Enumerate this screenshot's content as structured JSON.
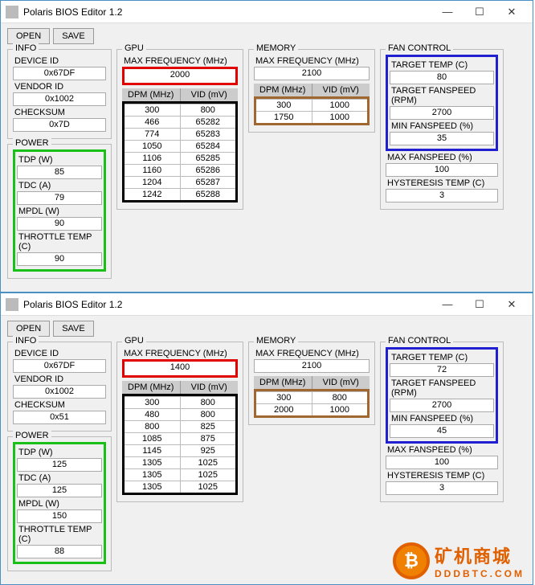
{
  "windows": [
    {
      "title": "Polaris BIOS Editor 1.2",
      "buttons": {
        "open": "OPEN",
        "save": "SAVE"
      },
      "info": {
        "legend": "INFO",
        "device_id_label": "DEVICE ID",
        "device_id": "0x67DF",
        "vendor_id_label": "VENDOR ID",
        "vendor_id": "0x1002",
        "checksum_label": "CHECKSUM",
        "checksum": "0x7D"
      },
      "power": {
        "legend": "POWER",
        "tdp_label": "TDP (W)",
        "tdp": "85",
        "tdc_label": "TDC (A)",
        "tdc": "79",
        "mpdl_label": "MPDL (W)",
        "mpdl": "90",
        "throttle_label": "THROTTLE TEMP (C)",
        "throttle": "90"
      },
      "gpu": {
        "legend": "GPU",
        "maxfreq_label": "MAX FREQUENCY (MHz)",
        "maxfreq": "2000",
        "th_dpm": "DPM (MHz)",
        "th_vid": "VID (mV)",
        "rows": [
          {
            "d": "300",
            "v": "800"
          },
          {
            "d": "466",
            "v": "65282"
          },
          {
            "d": "774",
            "v": "65283"
          },
          {
            "d": "1050",
            "v": "65284"
          },
          {
            "d": "1106",
            "v": "65285"
          },
          {
            "d": "1160",
            "v": "65286"
          },
          {
            "d": "1204",
            "v": "65287"
          },
          {
            "d": "1242",
            "v": "65288"
          }
        ]
      },
      "memory": {
        "legend": "MEMORY",
        "maxfreq_label": "MAX FREQUENCY (MHz)",
        "maxfreq": "2100",
        "th_dpm": "DPM (MHz)",
        "th_vid": "VID (mV)",
        "rows": [
          {
            "d": "300",
            "v": "1000"
          },
          {
            "d": "1750",
            "v": "1000"
          }
        ]
      },
      "fan": {
        "legend": "FAN CONTROL",
        "tt_label": "TARGET TEMP (C)",
        "tt": "80",
        "tf_label": "TARGET FANSPEED (RPM)",
        "tf": "2700",
        "mf_label": "MIN FANSPEED (%)",
        "mf": "35",
        "xf_label": "MAX FANSPEED (%)",
        "xf": "100",
        "ht_label": "HYSTERESIS TEMP (C)",
        "ht": "3"
      }
    },
    {
      "title": "Polaris BIOS Editor 1.2",
      "buttons": {
        "open": "OPEN",
        "save": "SAVE"
      },
      "info": {
        "legend": "INFO",
        "device_id_label": "DEVICE ID",
        "device_id": "0x67DF",
        "vendor_id_label": "VENDOR ID",
        "vendor_id": "0x1002",
        "checksum_label": "CHECKSUM",
        "checksum": "0x51"
      },
      "power": {
        "legend": "POWER",
        "tdp_label": "TDP (W)",
        "tdp": "125",
        "tdc_label": "TDC (A)",
        "tdc": "125",
        "mpdl_label": "MPDL (W)",
        "mpdl": "150",
        "throttle_label": "THROTTLE TEMP (C)",
        "throttle": "88"
      },
      "gpu": {
        "legend": "GPU",
        "maxfreq_label": "MAX FREQUENCY (MHz)",
        "maxfreq": "1400",
        "th_dpm": "DPM (MHz)",
        "th_vid": "VID (mV)",
        "rows": [
          {
            "d": "300",
            "v": "800"
          },
          {
            "d": "480",
            "v": "800"
          },
          {
            "d": "800",
            "v": "825"
          },
          {
            "d": "1085",
            "v": "875"
          },
          {
            "d": "1145",
            "v": "925"
          },
          {
            "d": "1305",
            "v": "1025"
          },
          {
            "d": "1305",
            "v": "1025"
          },
          {
            "d": "1305",
            "v": "1025"
          }
        ]
      },
      "memory": {
        "legend": "MEMORY",
        "maxfreq_label": "MAX FREQUENCY (MHz)",
        "maxfreq": "2100",
        "th_dpm": "DPM (MHz)",
        "th_vid": "VID (mV)",
        "rows": [
          {
            "d": "300",
            "v": "800"
          },
          {
            "d": "2000",
            "v": "1000"
          }
        ]
      },
      "fan": {
        "legend": "FAN CONTROL",
        "tt_label": "TARGET TEMP (C)",
        "tt": "72",
        "tf_label": "TARGET FANSPEED (RPM)",
        "tf": "2700",
        "mf_label": "MIN FANSPEED (%)",
        "mf": "45",
        "xf_label": "MAX FANSPEED (%)",
        "xf": "100",
        "ht_label": "HYSTERESIS TEMP (C)",
        "ht": "3"
      }
    }
  ],
  "watermark": {
    "line1": "矿机商城",
    "line2": "DDDBTC.COM"
  },
  "colors": {
    "green": "#18c018",
    "red": "#e00000",
    "brown": "#a06830",
    "blue": "#2020d0",
    "black": "#000000",
    "orange": "#e06000"
  }
}
